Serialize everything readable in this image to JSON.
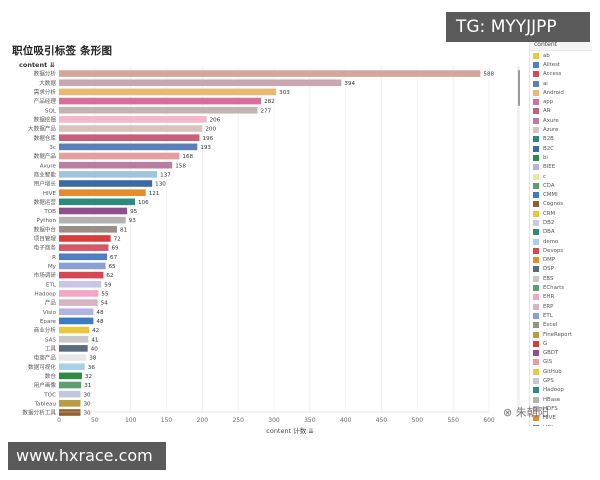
{
  "chart_data": {
    "type": "bar",
    "orientation": "horizontal",
    "title": "职位吸引标签 条形图",
    "y_header": "content ⇊",
    "xlabel": "content 计数 ⇊",
    "xlim": [
      0,
      600
    ],
    "x_ticks": [
      "0",
      "50",
      "100",
      "150",
      "200",
      "250",
      "300",
      "350",
      "400",
      "450",
      "500",
      "550",
      "600"
    ],
    "grid": true,
    "legend_position": "right",
    "categories": [
      "数据分析",
      "大数据",
      "需求分析",
      "产品经理",
      "SQL",
      "数据挖掘",
      "大数据产品",
      "数据仓库",
      "3c",
      "数据产品",
      "Axure",
      "商业智能",
      "用户增长",
      "HIVE",
      "数据运营",
      "TOB",
      "Python",
      "数据中台",
      "项目管理",
      "电子商务",
      "R",
      "My",
      "市场调研",
      "ETL",
      "Hadoop",
      "产品",
      "Visio",
      "Epare",
      "商业分析",
      "SAS",
      "工具",
      "电商产品",
      "数据可视化",
      "数仓",
      "用户画像",
      "TOC",
      "Tableau",
      "数据分析工具"
    ],
    "values": [
      588,
      394,
      303,
      282,
      277,
      206,
      200,
      196,
      193,
      168,
      158,
      137,
      130,
      121,
      106,
      95,
      93,
      81,
      72,
      69,
      67,
      65,
      62,
      59,
      55,
      54,
      48,
      48,
      42,
      41,
      40,
      38,
      36,
      32,
      31,
      30,
      30,
      30
    ],
    "colors": [
      "#d4a59a",
      "#c9a7b2",
      "#e8b96e",
      "#d76e9b",
      "#c0b4ae",
      "#f4b7c9",
      "#d9c4bc",
      "#c65f7a",
      "#5b7fb8",
      "#e59e9b",
      "#b77ea1",
      "#a0c4e0",
      "#3d6aa6",
      "#e88a2c",
      "#2c8a7e",
      "#8e4f8c",
      "#b2b2b2",
      "#9a8f86",
      "#d93b3b",
      "#d4576a",
      "#4e7fc0",
      "#8a9fd4",
      "#d64655",
      "#c9c7e5",
      "#f0a6c4",
      "#d6b5c2",
      "#b4b2e0",
      "#3b7bc4",
      "#e8c93d",
      "#c8c8c8",
      "#5b6b7c",
      "#e8e8e8",
      "#a8d0e6",
      "#2e8b46",
      "#5e9e6e",
      "#c0c8e0",
      "#b89c3e",
      "#8f5f2e"
    ],
    "value_labels": [
      "588",
      "394",
      "303",
      "282",
      "277",
      "206",
      "200",
      "196",
      "193",
      "168",
      "158",
      "137",
      "130",
      "121",
      "106",
      "95",
      "93",
      "81",
      "72",
      "69",
      "67",
      "65",
      "62",
      "59",
      "55",
      "54",
      "48",
      "48",
      "42",
      "41",
      "40",
      "38",
      "36",
      "32",
      "31",
      "30",
      "30",
      "30"
    ]
  },
  "legend": {
    "title": "content",
    "items": [
      {
        "label": "ab",
        "color": "#e8c93d"
      },
      {
        "label": "Alitest",
        "color": "#4e7fc0"
      },
      {
        "label": "Access",
        "color": "#d64655"
      },
      {
        "label": "ai",
        "color": "#5b7fb8"
      },
      {
        "label": "Android",
        "color": "#e8b96e"
      },
      {
        "label": "app",
        "color": "#d76e9b"
      },
      {
        "label": "AR",
        "color": "#c65f7a"
      },
      {
        "label": "Axure",
        "color": "#b77ea1"
      },
      {
        "label": "Azure",
        "color": "#d9c4bc"
      },
      {
        "label": "B2B",
        "color": "#2c8a7e"
      },
      {
        "label": "B2C",
        "color": "#3d6aa6"
      },
      {
        "label": "bi",
        "color": "#2e8b46"
      },
      {
        "label": "BIEE",
        "color": "#b4b2e0"
      },
      {
        "label": "c",
        "color": "#e8e8a0"
      },
      {
        "label": "CDA",
        "color": "#5e9e6e"
      },
      {
        "label": "CMMI",
        "color": "#3b7bc4"
      },
      {
        "label": "Cognos",
        "color": "#8f5f2e"
      },
      {
        "label": "CRM",
        "color": "#e8c93d"
      },
      {
        "label": "DB2",
        "color": "#c9c7e5"
      },
      {
        "label": "DBA",
        "color": "#2c8a7e"
      },
      {
        "label": "demo",
        "color": "#a8d0e6"
      },
      {
        "label": "Devops",
        "color": "#d64655"
      },
      {
        "label": "DMP",
        "color": "#e88a2c"
      },
      {
        "label": "DSP",
        "color": "#5b6b7c"
      },
      {
        "label": "EBS",
        "color": "#c8c8c8"
      },
      {
        "label": "ECharts",
        "color": "#5e9e6e"
      },
      {
        "label": "EHR",
        "color": "#f0a6c4"
      },
      {
        "label": "ERP",
        "color": "#d6b5c2"
      },
      {
        "label": "ETL",
        "color": "#8a9fd4"
      },
      {
        "label": "Excel",
        "color": "#9a8f86"
      },
      {
        "label": "FineReport",
        "color": "#b89c3e"
      },
      {
        "label": "G",
        "color": "#d93b3b"
      },
      {
        "label": "GBDT",
        "color": "#8e4f8c"
      },
      {
        "label": "GIS",
        "color": "#e59e9b"
      },
      {
        "label": "GitHub",
        "color": "#e8c93d"
      },
      {
        "label": "GPS",
        "color": "#c0c8e0"
      },
      {
        "label": "Hadoop",
        "color": "#2c8a7e"
      },
      {
        "label": "HBase",
        "color": "#b2b2b2"
      },
      {
        "label": "HDFS",
        "color": "#c0b4ae"
      },
      {
        "label": "HIVE",
        "color": "#e88a2c"
      },
      {
        "label": "HQL",
        "color": "#5b7fb8"
      },
      {
        "label": "ios",
        "color": "#3b7bc4"
      }
    ]
  },
  "watermarks": {
    "top": "TG: MYYJJPP",
    "bottom": "www.hxrace.com",
    "wechat": "⊗ 朱朝阳"
  }
}
